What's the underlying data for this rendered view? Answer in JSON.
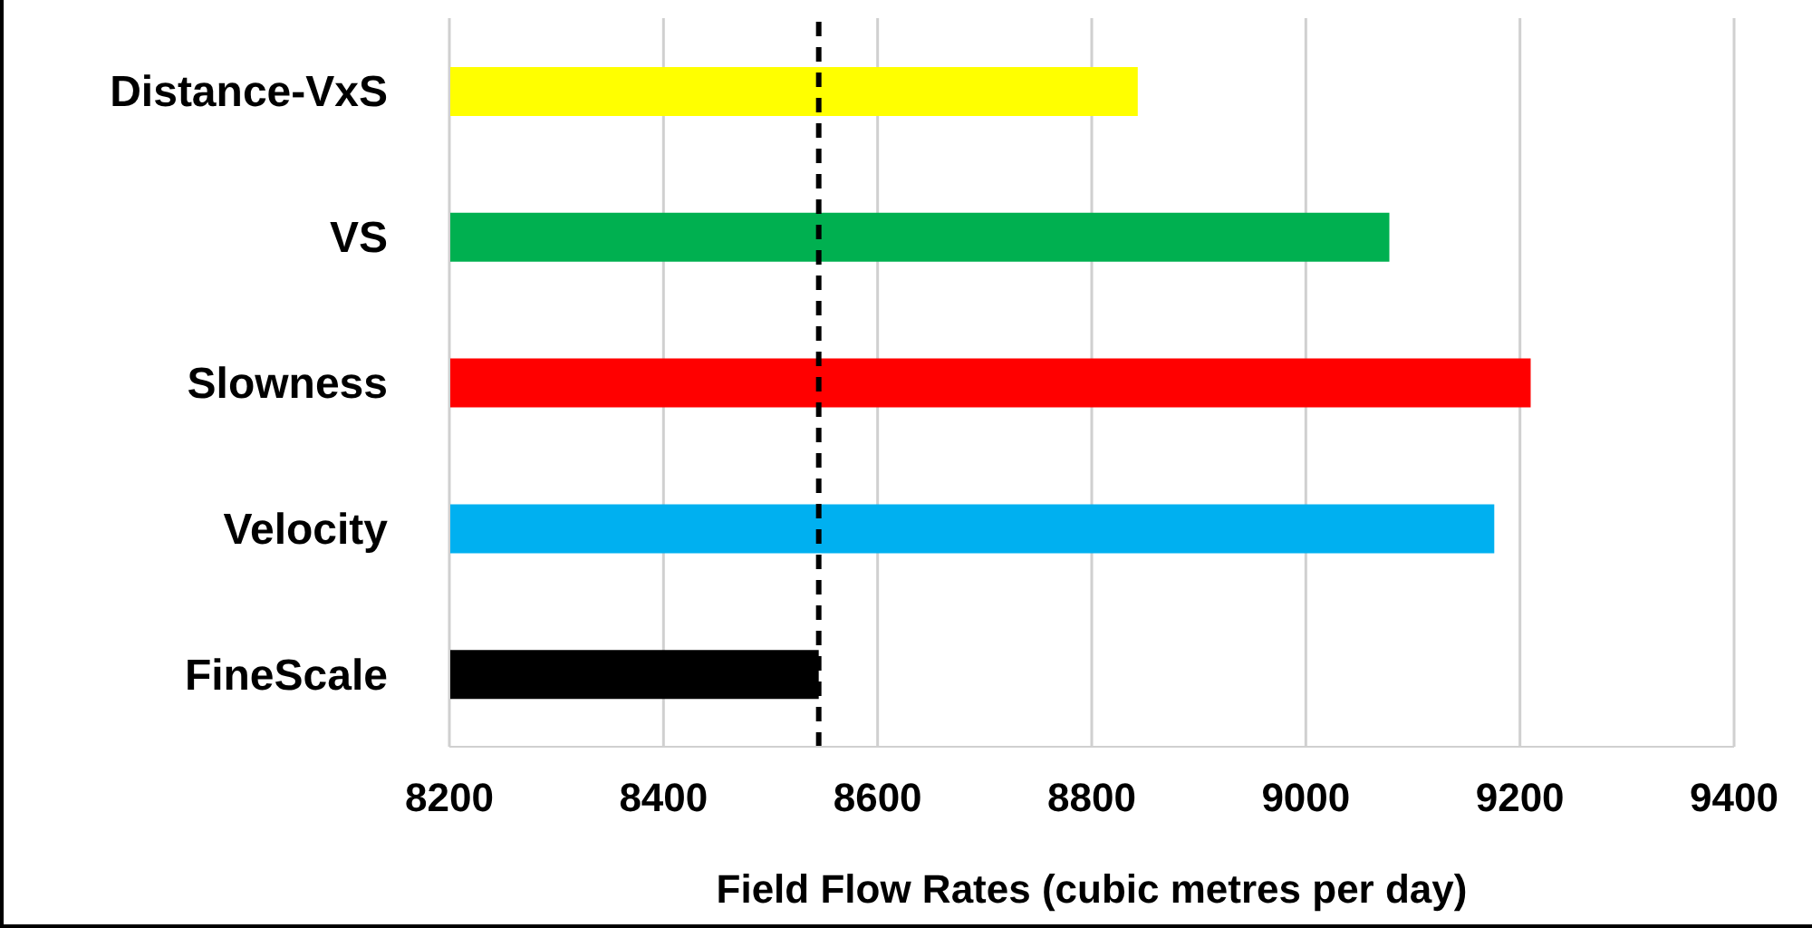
{
  "chart_data": {
    "type": "bar",
    "orientation": "horizontal",
    "xlabel": "Field Flow Rates (cubic metres per day)",
    "categories": [
      "Distance-VxS",
      "VS",
      "Slowness",
      "Velocity",
      "FineScale"
    ],
    "values": [
      8843,
      9078,
      9210,
      9176,
      8545
    ],
    "colors": [
      "#ffff00",
      "#00b050",
      "#ff0000",
      "#00b0f0",
      "#000000"
    ],
    "xlim": [
      8200,
      9400
    ],
    "xticks": [
      8200,
      8400,
      8600,
      8800,
      9000,
      9200,
      9400
    ],
    "grid": "x",
    "legend": false,
    "ref_lines": [
      {
        "axis": "x",
        "value": 8545,
        "color": "#000000",
        "line_style": "dashed"
      }
    ]
  }
}
